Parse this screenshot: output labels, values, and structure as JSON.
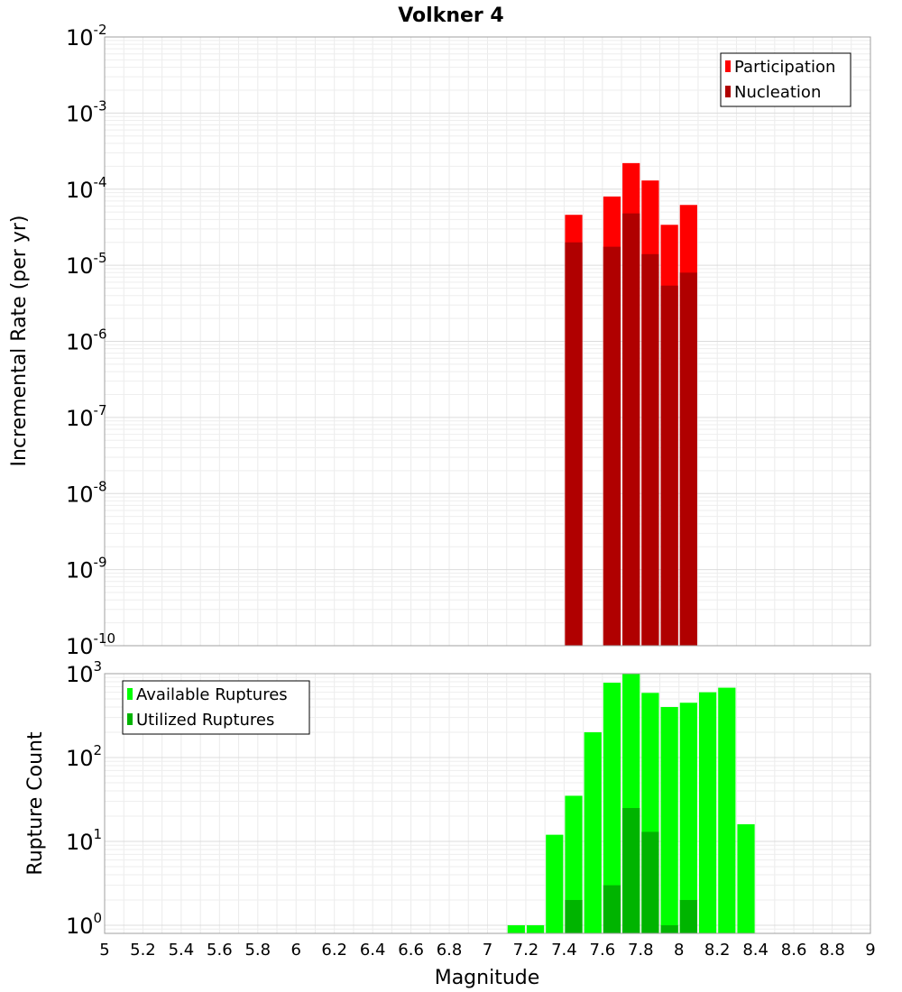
{
  "title": "Volkner 4",
  "chart_data": [
    {
      "type": "bar",
      "panel": "top",
      "title": "Volkner 4",
      "xlabel": "Magnitude",
      "ylabel": "Incremental Rate (per yr)",
      "yscale": "log",
      "xlim": [
        5,
        9
      ],
      "ylim": [
        1e-10,
        0.01
      ],
      "grid": true,
      "legend_position": "top-right",
      "bar_width": 0.1,
      "y_tick_exponents": [
        "-2",
        "-3",
        "-4",
        "-5",
        "-6",
        "-7",
        "-8",
        "-9",
        "-10"
      ],
      "series": [
        {
          "name": "Participation",
          "color": "#ff0000",
          "x": [
            7.45,
            7.65,
            7.75,
            7.85,
            7.95,
            8.05
          ],
          "values": [
            4.6e-05,
            8e-05,
            0.00022,
            0.00013,
            3.4e-05,
            6.2e-05
          ]
        },
        {
          "name": "Nucleation",
          "color": "#b00000",
          "x": [
            7.45,
            7.65,
            7.75,
            7.85,
            7.95,
            8.05
          ],
          "values": [
            2e-05,
            1.75e-05,
            4.8e-05,
            1.4e-05,
            5.4e-06,
            8e-06
          ]
        }
      ]
    },
    {
      "type": "bar",
      "panel": "bottom",
      "xlabel": "Magnitude",
      "ylabel": "Rupture Count",
      "yscale": "log",
      "xlim": [
        5,
        9
      ],
      "ylim": [
        0.8,
        1000
      ],
      "grid": true,
      "legend_position": "top-left",
      "bar_width": 0.1,
      "x_ticks": [
        "5",
        "5.2",
        "5.4",
        "5.6",
        "5.8",
        "6",
        "6.2",
        "6.4",
        "6.6",
        "6.8",
        "7",
        "7.2",
        "7.4",
        "7.6",
        "7.8",
        "8",
        "8.2",
        "8.4",
        "8.6",
        "8.8",
        "9"
      ],
      "y_tick_exponents": [
        "3",
        "2",
        "1",
        "0"
      ],
      "series": [
        {
          "name": "Available Ruptures",
          "color": "#00ff00",
          "x": [
            7.15,
            7.25,
            7.35,
            7.45,
            7.55,
            7.65,
            7.75,
            7.85,
            7.95,
            8.05,
            8.15,
            8.25,
            8.35
          ],
          "values": [
            1,
            1,
            12,
            35,
            200,
            780,
            1000,
            590,
            400,
            450,
            600,
            680,
            16
          ]
        },
        {
          "name": "Utilized Ruptures",
          "color": "#00b400",
          "x": [
            7.45,
            7.65,
            7.75,
            7.85,
            7.95,
            8.05
          ],
          "values": [
            2,
            3,
            25,
            13,
            1,
            2
          ]
        }
      ]
    }
  ]
}
